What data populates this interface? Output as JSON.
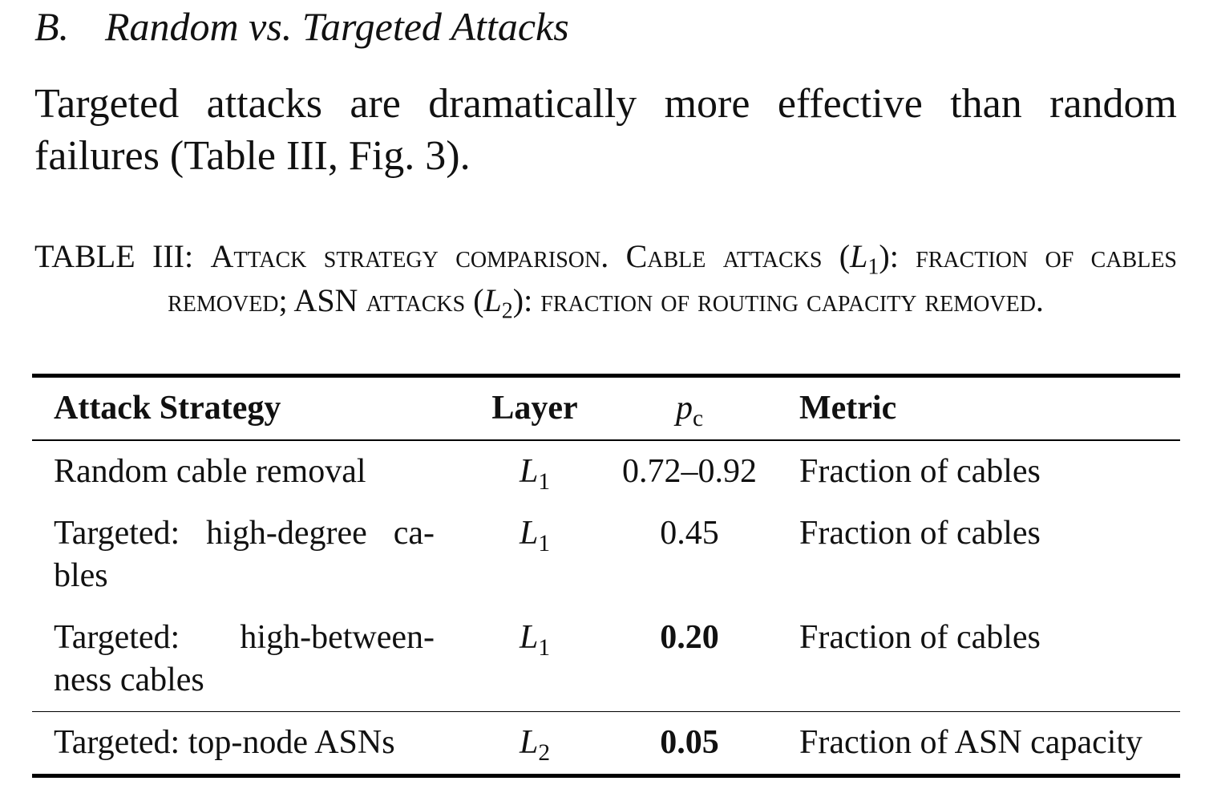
{
  "section": {
    "label": "B.",
    "title": "Random vs. Targeted Attacks"
  },
  "paragraph": "Targeted attacks are dramatically more effective than random failures (Table III, Fig. 3).",
  "table": {
    "caption": {
      "label": "TABLE III:",
      "segments": [
        {
          "text": "Attack strategy comparison. Cable attacks ("
        },
        {
          "math": "L",
          "sub": "1"
        },
        {
          "text": "): fraction of cables removed; ASN attacks ("
        },
        {
          "math": "L",
          "sub": "2"
        },
        {
          "text": "): fraction of routing capacity removed."
        }
      ]
    },
    "header": {
      "strategy": "Attack Strategy",
      "layer": "Layer",
      "pc": {
        "math": "p",
        "sub": "c"
      },
      "metric": "Metric"
    },
    "rows": [
      {
        "strategy": [
          "Random cable removal"
        ],
        "layer": {
          "math": "L",
          "sub": "1"
        },
        "pc": "0.72–0.92",
        "pc_bold": false,
        "metric": "Fraction of cables"
      },
      {
        "strategy": [
          "Targeted: high-degree ca-",
          "bles"
        ],
        "layer": {
          "math": "L",
          "sub": "1"
        },
        "pc": "0.45",
        "pc_bold": false,
        "metric": "Fraction of cables"
      },
      {
        "strategy": [
          "Targeted: high-between-",
          "ness cables"
        ],
        "layer": {
          "math": "L",
          "sub": "1"
        },
        "pc": "0.20",
        "pc_bold": true,
        "metric": "Fraction of cables"
      },
      {
        "strategy": [
          "Targeted: top-node ASNs"
        ],
        "layer": {
          "math": "L",
          "sub": "2"
        },
        "pc": "0.05",
        "pc_bold": true,
        "metric": "Fraction of ASN capacity",
        "rule_above": true
      }
    ]
  }
}
